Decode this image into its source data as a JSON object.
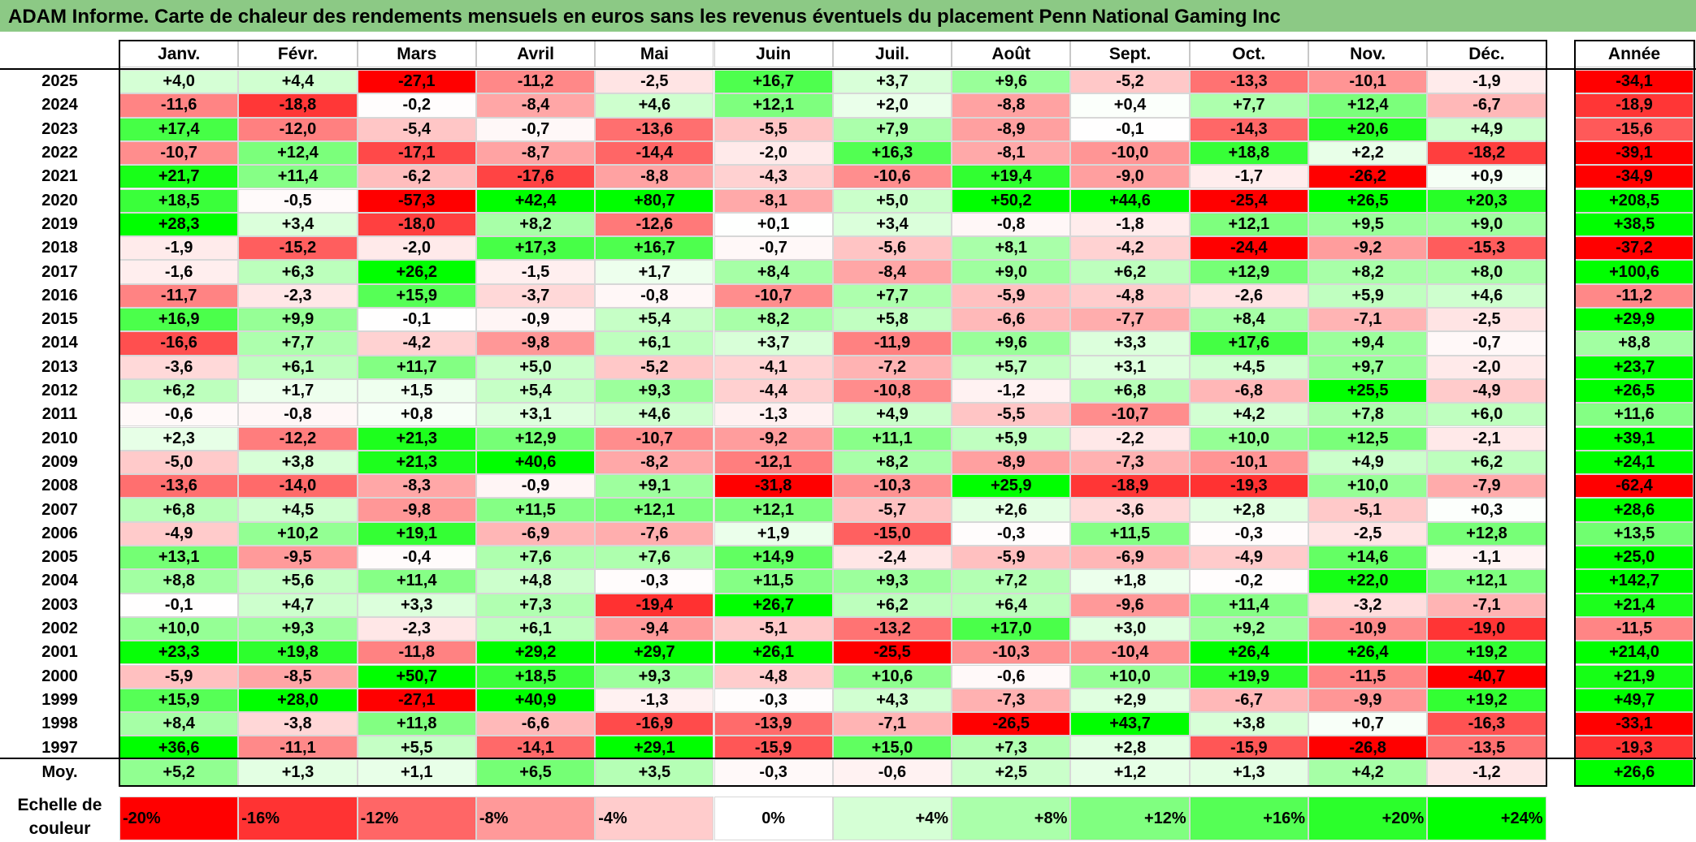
{
  "title": "ADAM Informe. Carte de chaleur des rendements mensuels en euros sans les revenus éventuels du placement Penn National Gaming Inc",
  "chart_data": {
    "type": "heatmap",
    "title": "ADAM Informe. Carte de chaleur des rendements mensuels en euros sans les revenus éventuels du placement Penn National Gaming Inc",
    "columns": [
      "Janv.",
      "Févr.",
      "Mars",
      "Avril",
      "Mai",
      "Juin",
      "Juil.",
      "Août",
      "Sept.",
      "Oct.",
      "Nov.",
      "Déc."
    ],
    "year_header": "Année",
    "rows": [
      {
        "year": "2025",
        "values": [
          4.0,
          4.4,
          -27.1,
          -11.2,
          -2.5,
          16.7,
          3.7,
          9.6,
          -5.2,
          -13.3,
          -10.1,
          -1.9
        ],
        "annual": -34.1
      },
      {
        "year": "2024",
        "values": [
          -11.6,
          -18.8,
          -0.2,
          -8.4,
          4.6,
          12.1,
          2.0,
          -8.8,
          0.4,
          7.7,
          12.4,
          -6.7
        ],
        "annual": -18.9
      },
      {
        "year": "2023",
        "values": [
          17.4,
          -12.0,
          -5.4,
          -0.7,
          -13.6,
          -5.5,
          7.9,
          -8.9,
          -0.1,
          -14.3,
          20.6,
          4.9
        ],
        "annual": -15.6
      },
      {
        "year": "2022",
        "values": [
          -10.7,
          12.4,
          -17.1,
          -8.7,
          -14.4,
          -2.0,
          16.3,
          -8.1,
          -10.0,
          18.8,
          2.2,
          -18.2
        ],
        "annual": -39.1
      },
      {
        "year": "2021",
        "values": [
          21.7,
          11.4,
          -6.2,
          -17.6,
          -8.8,
          -4.3,
          -10.6,
          19.4,
          -9.0,
          -1.7,
          -26.2,
          0.9
        ],
        "annual": -34.9
      },
      {
        "year": "2020",
        "values": [
          18.5,
          -0.5,
          -57.3,
          42.4,
          80.7,
          -8.1,
          5.0,
          50.2,
          44.6,
          -25.4,
          26.5,
          20.3
        ],
        "annual": 208.5
      },
      {
        "year": "2019",
        "values": [
          28.3,
          3.4,
          -18.0,
          8.2,
          -12.6,
          0.1,
          3.4,
          -0.8,
          -1.8,
          12.1,
          9.5,
          9.0
        ],
        "annual": 38.5
      },
      {
        "year": "2018",
        "values": [
          -1.9,
          -15.2,
          -2.0,
          17.3,
          16.7,
          -0.7,
          -5.6,
          8.1,
          -4.2,
          -24.4,
          -9.2,
          -15.3
        ],
        "annual": -37.2
      },
      {
        "year": "2017",
        "values": [
          -1.6,
          6.3,
          26.2,
          -1.5,
          1.7,
          8.4,
          -8.4,
          9.0,
          6.2,
          12.9,
          8.2,
          8.0
        ],
        "annual": 100.6
      },
      {
        "year": "2016",
        "values": [
          -11.7,
          -2.3,
          15.9,
          -3.7,
          -0.8,
          -10.7,
          7.7,
          -5.9,
          -4.8,
          -2.6,
          5.9,
          4.6
        ],
        "annual": -11.2
      },
      {
        "year": "2015",
        "values": [
          16.9,
          9.9,
          -0.1,
          -0.9,
          5.4,
          8.2,
          5.8,
          -6.6,
          -7.7,
          8.4,
          -7.1,
          -2.5
        ],
        "annual": 29.9
      },
      {
        "year": "2014",
        "values": [
          -16.6,
          7.7,
          -4.2,
          -9.8,
          6.1,
          3.7,
          -11.9,
          9.6,
          3.3,
          17.6,
          9.4,
          -0.7
        ],
        "annual": 8.8
      },
      {
        "year": "2013",
        "values": [
          -3.6,
          6.1,
          11.7,
          5.0,
          -5.2,
          -4.1,
          -7.2,
          5.7,
          3.1,
          4.5,
          9.7,
          -2.0
        ],
        "annual": 23.7
      },
      {
        "year": "2012",
        "values": [
          6.2,
          1.7,
          1.5,
          5.4,
          9.3,
          -4.4,
          -10.8,
          -1.2,
          6.8,
          -6.8,
          25.5,
          -4.9
        ],
        "annual": 26.5
      },
      {
        "year": "2011",
        "values": [
          -0.6,
          -0.8,
          0.8,
          3.1,
          4.6,
          -1.3,
          4.9,
          -5.5,
          -10.7,
          4.2,
          7.8,
          6.0
        ],
        "annual": 11.6
      },
      {
        "year": "2010",
        "values": [
          2.3,
          -12.2,
          21.3,
          12.9,
          -10.7,
          -9.2,
          11.1,
          5.9,
          -2.2,
          10.0,
          12.5,
          -2.1
        ],
        "annual": 39.1
      },
      {
        "year": "2009",
        "values": [
          -5.0,
          3.8,
          21.3,
          40.6,
          -8.2,
          -12.1,
          8.2,
          -8.9,
          -7.3,
          -10.1,
          4.9,
          6.2
        ],
        "annual": 24.1
      },
      {
        "year": "2008",
        "values": [
          -13.6,
          -14.0,
          -8.3,
          -0.9,
          9.1,
          -31.8,
          -10.3,
          25.9,
          -18.9,
          -19.3,
          10.0,
          -7.9
        ],
        "annual": -62.4
      },
      {
        "year": "2007",
        "values": [
          6.8,
          4.5,
          -9.8,
          11.5,
          12.1,
          12.1,
          -5.7,
          2.6,
          -3.6,
          2.8,
          -5.1,
          0.3
        ],
        "annual": 28.6
      },
      {
        "year": "2006",
        "values": [
          -4.9,
          10.2,
          19.1,
          -6.9,
          -7.6,
          1.9,
          -15.0,
          -0.3,
          11.5,
          -0.3,
          -2.5,
          12.8
        ],
        "annual": 13.5
      },
      {
        "year": "2005",
        "values": [
          13.1,
          -9.5,
          -0.4,
          7.6,
          7.6,
          14.9,
          -2.4,
          -5.9,
          -6.9,
          -4.9,
          14.6,
          -1.1
        ],
        "annual": 25.0
      },
      {
        "year": "2004",
        "values": [
          8.8,
          5.6,
          11.4,
          4.8,
          -0.3,
          11.5,
          9.3,
          7.2,
          1.8,
          -0.2,
          22.0,
          12.1
        ],
        "annual": 142.7
      },
      {
        "year": "2003",
        "values": [
          -0.1,
          4.7,
          3.3,
          7.3,
          -19.4,
          26.7,
          6.2,
          6.4,
          -9.6,
          11.4,
          -3.2,
          -7.1
        ],
        "annual": 21.4
      },
      {
        "year": "2002",
        "values": [
          10.0,
          9.3,
          -2.3,
          6.1,
          -9.4,
          -5.1,
          -13.2,
          17.0,
          3.0,
          9.2,
          -10.9,
          -19.0
        ],
        "annual": -11.5
      },
      {
        "year": "2001",
        "values": [
          23.3,
          19.8,
          -11.8,
          29.2,
          29.7,
          26.1,
          -25.5,
          -10.3,
          -10.4,
          26.4,
          26.4,
          19.2
        ],
        "annual": 214.0
      },
      {
        "year": "2000",
        "values": [
          -5.9,
          -8.5,
          50.7,
          18.5,
          9.3,
          -4.8,
          10.6,
          -0.6,
          10.0,
          19.9,
          -11.5,
          -40.7
        ],
        "annual": 21.9
      },
      {
        "year": "1999",
        "values": [
          15.9,
          28.0,
          -27.1,
          40.9,
          -1.3,
          -0.3,
          4.3,
          -7.3,
          2.9,
          -6.7,
          -9.9,
          19.2
        ],
        "annual": 49.7
      },
      {
        "year": "1998",
        "values": [
          8.4,
          -3.8,
          11.8,
          -6.6,
          -16.9,
          -13.9,
          -7.1,
          -26.5,
          43.7,
          3.8,
          0.7,
          -16.3
        ],
        "annual": -33.1
      },
      {
        "year": "1997",
        "values": [
          36.6,
          -11.1,
          5.5,
          -14.1,
          29.1,
          -15.9,
          15.0,
          7.3,
          2.8,
          -15.9,
          -26.8,
          -13.5
        ],
        "annual": -19.3
      }
    ],
    "average": {
      "label": "Moy.",
      "values": [
        5.2,
        1.3,
        1.1,
        6.5,
        3.5,
        -0.3,
        -0.6,
        2.5,
        1.2,
        1.3,
        4.2,
        -1.2
      ],
      "annual": 26.6
    },
    "scale": {
      "label": "Echelle de couleur",
      "steps": [
        {
          "label": "-20%",
          "value": -20,
          "color": "#ff0000"
        },
        {
          "label": "-16%",
          "value": -16,
          "color": "#ff3333"
        },
        {
          "label": "-12%",
          "value": -12,
          "color": "#ff6666"
        },
        {
          "label": "-8%",
          "value": -8,
          "color": "#ff9999"
        },
        {
          "label": "-4%",
          "value": -4,
          "color": "#ffcccc"
        },
        {
          "label": "0%",
          "value": 0,
          "color": "#ffffff"
        },
        {
          "label": "+4%",
          "value": 4,
          "color": "#d5ffd5"
        },
        {
          "label": "+8%",
          "value": 8,
          "color": "#aaffaa"
        },
        {
          "label": "+12%",
          "value": 12,
          "color": "#80ff80"
        },
        {
          "label": "+16%",
          "value": 16,
          "color": "#55ff55"
        },
        {
          "label": "+20%",
          "value": 20,
          "color": "#2bff2b"
        },
        {
          "label": "+24%",
          "value": 24,
          "color": "#00ff00"
        }
      ]
    }
  }
}
